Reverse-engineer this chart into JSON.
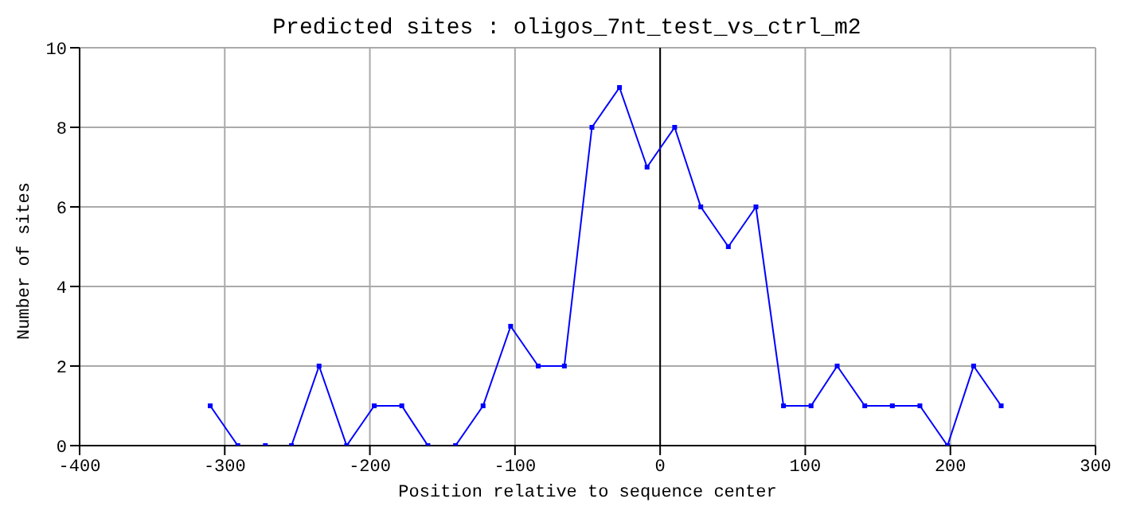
{
  "chart_data": {
    "type": "line",
    "title": "Predicted sites : oligos_7nt_test_vs_ctrl_m2",
    "xlabel": "Position relative to sequence center",
    "ylabel": "Number of sites",
    "x": [
      -310,
      -291,
      -272,
      -254,
      -235,
      -216,
      -197,
      -178,
      -160,
      -141,
      -122,
      -103,
      -84,
      -66,
      -47,
      -28,
      -9,
      10,
      28,
      47,
      66,
      85,
      104,
      122,
      141,
      160,
      179,
      198,
      216,
      235
    ],
    "series": [
      {
        "color": "#0000ff",
        "values": [
          1,
          0,
          0,
          0,
          2,
          0,
          1,
          1,
          0,
          0,
          1,
          3,
          2,
          2,
          8,
          9,
          7,
          8,
          6,
          5,
          6,
          1,
          1,
          2,
          1,
          1,
          1,
          0,
          2,
          1
        ]
      }
    ],
    "xlim": [
      -400,
      300
    ],
    "xticks": [
      -400,
      -300,
      -200,
      -100,
      0,
      100,
      200,
      300
    ],
    "ylim": [
      0,
      10
    ],
    "yticks": [
      0,
      2,
      4,
      6,
      8,
      10
    ],
    "ref_lines": [
      {
        "axis": "x",
        "value": 0,
        "color": "#000000"
      }
    ],
    "grid": true,
    "marker": "square",
    "line_style": "solid",
    "legend": false
  }
}
